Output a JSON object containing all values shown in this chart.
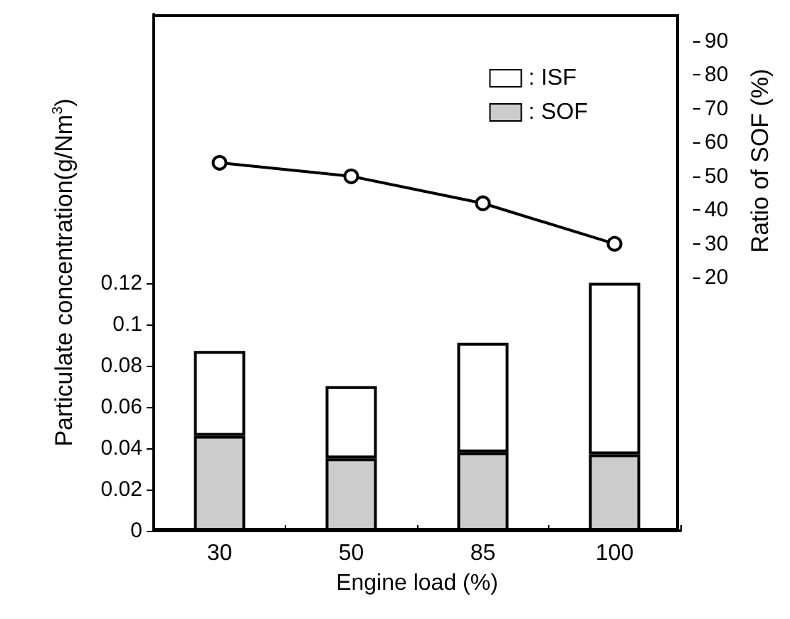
{
  "chart_data": {
    "type": "bar",
    "stacked": true,
    "xlabel": "Engine load (%)",
    "ylabel": "Particulate concentration(g/Nm$^{3}$)",
    "y2label": "Ratio of SOF (%)",
    "categories": [
      "30",
      "50",
      "85",
      "100"
    ],
    "series": [
      {
        "name": ": SOF",
        "color": "#cccccc",
        "values": [
          0.046,
          0.035,
          0.038,
          0.037
        ]
      },
      {
        "name": ": ISF",
        "color": "#ffffff",
        "values": [
          0.041,
          0.035,
          0.053,
          0.083
        ]
      },
      {
        "type": "line",
        "axis": "y2",
        "color": "#000000",
        "values": [
          54,
          50,
          42,
          30
        ]
      }
    ],
    "ylim": [
      0,
      0.25
    ],
    "yticks": [
      0,
      0.02,
      0.04,
      0.06,
      0.08,
      0.1,
      0.12
    ],
    "y2lim": [
      -55,
      98
    ],
    "y2ticks": [
      20,
      30,
      40,
      50,
      60,
      70,
      80,
      90
    ],
    "legend": "top right",
    "marker": "circle",
    "line_style": "solid"
  }
}
